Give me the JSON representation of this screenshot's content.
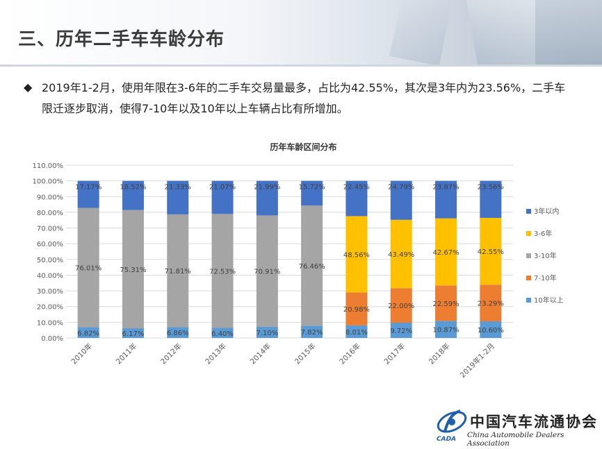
{
  "page": {
    "title": "三、历年二手车车龄分布",
    "bullet": "2019年1-2月，使用年限在3-6年的二手车交易量最多，占比为42.55%，其次是3年内为23.56%，二手车限迁逐步取消，使得7-10年以及10年以上车辆占比有所增加。"
  },
  "logo": {
    "cn": "中国汽车流通协会",
    "en": "China Automobile Dealers Association",
    "abbr": "CADA"
  },
  "colors": {
    "s3": "#4472C4",
    "s36": "#FFC000",
    "s310": "#A5A5A5",
    "s710": "#ED7D31",
    "s10": "#5B9BD5"
  },
  "chart_data": {
    "type": "bar",
    "stacked": true,
    "title": "历年车龄区间分布",
    "categories": [
      "2010年",
      "2011年",
      "2012年",
      "2013年",
      "2014年",
      "2015年",
      "2016年",
      "2017年",
      "2018年",
      "2019年1-2月"
    ],
    "ylim": [
      0,
      110
    ],
    "yticks": [
      "0.00%",
      "10.00%",
      "20.00%",
      "30.00%",
      "40.00%",
      "50.00%",
      "60.00%",
      "70.00%",
      "80.00%",
      "90.00%",
      "100.00%",
      "110.00%"
    ],
    "legend_position": "right",
    "series": [
      {
        "name": "10年以上",
        "key": "s10",
        "values": [
          6.82,
          6.17,
          6.86,
          6.4,
          7.1,
          7.82,
          8.01,
          9.72,
          10.87,
          10.6
        ],
        "labels": [
          "6.82%",
          "6.17%",
          "6.86%",
          "6.40%",
          "7.10%",
          "7.82%",
          "8.01%",
          "9.72%",
          "10.87%",
          "10.60%"
        ]
      },
      {
        "name": "7-10年",
        "key": "s710",
        "values": [
          0,
          0,
          0,
          0,
          0,
          0,
          20.98,
          22.0,
          22.59,
          23.29
        ],
        "labels": [
          "",
          "",
          "",
          "",
          "",
          "",
          "20.98%",
          "22.00%",
          "22.59%",
          "23.29%"
        ]
      },
      {
        "name": "3-10年",
        "key": "s310",
        "values": [
          76.01,
          75.31,
          71.81,
          72.53,
          70.91,
          76.46,
          0,
          0,
          0,
          0
        ],
        "labels": [
          "76.01%",
          "75.31%",
          "71.81%",
          "72.53%",
          "70.91%",
          "76.46%",
          "",
          "",
          "",
          ""
        ]
      },
      {
        "name": "3-6年",
        "key": "s36",
        "values": [
          0,
          0,
          0,
          0,
          0,
          0,
          48.56,
          43.49,
          42.67,
          42.55
        ],
        "labels": [
          "",
          "",
          "",
          "",
          "",
          "",
          "48.56%",
          "43.49%",
          "42.67%",
          "42.55%"
        ]
      },
      {
        "name": "3年以内",
        "key": "s3",
        "values": [
          17.17,
          18.52,
          21.33,
          21.07,
          21.99,
          15.72,
          22.45,
          24.79,
          23.87,
          23.56
        ],
        "labels": [
          "17.17%",
          "18.52%",
          "21.33%",
          "21.07%",
          "21.99%",
          "15.72%",
          "22.45%",
          "24.79%",
          "23.87%",
          "23.56%"
        ]
      }
    ],
    "legend_order": [
      "3年以内",
      "3-6年",
      "3-10年",
      "7-10年",
      "10年以上"
    ]
  }
}
